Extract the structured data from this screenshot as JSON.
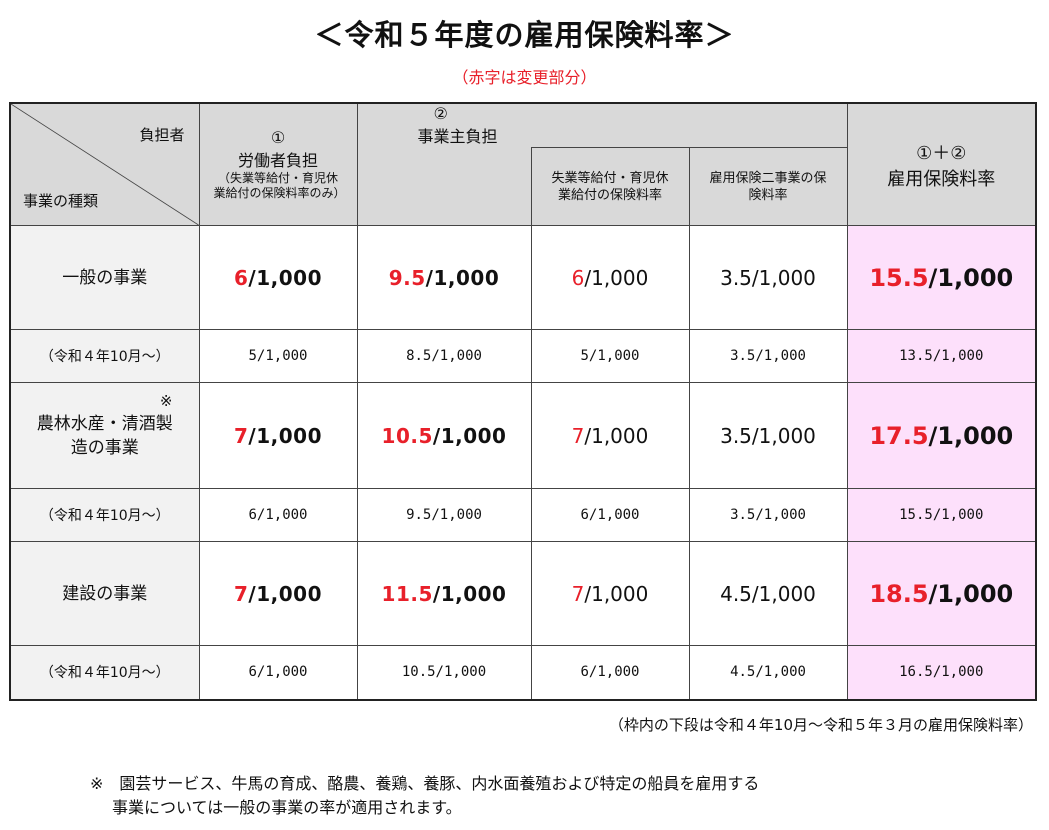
{
  "title": "＜令和５年度の雇用保険料率＞",
  "subtitle": "（赤字は変更部分）",
  "header": {
    "corner_top": "負担者",
    "corner_bottom": "事業の種類",
    "worker_num": "①",
    "worker_label": "労働者負担",
    "worker_sub": "（失業等給付・育児休業給付の保険料率のみ）",
    "employer_num": "②",
    "employer_label": "事業主負担",
    "employer_sub1": "失業等給付・育児休業給付の保険料率",
    "employer_sub2": "雇用保険二事業の保険料率",
    "total_num": "①＋②",
    "total_label": "雇用保険料率"
  },
  "rows": [
    {
      "label": "一般の事業",
      "mark": "",
      "worker": {
        "red": "6",
        "rest": "/1,000"
      },
      "employer": {
        "red": "9.5",
        "rest": "/1,000"
      },
      "unemployment": {
        "red": "6",
        "rest": "/1,000"
      },
      "two_projects": "3.5/1,000",
      "total": {
        "red": "15.5",
        "rest": "/1,000"
      },
      "prev_label": "（令和４年10月～）",
      "prev": [
        "5/1,000",
        "8.5/1,000",
        "5/1,000",
        "3.5/1,000",
        "13.5/1,000"
      ]
    },
    {
      "label": "農林水産・清酒製造の事業",
      "mark": "※",
      "worker": {
        "red": "7",
        "rest": "/1,000"
      },
      "employer": {
        "red": "10.5",
        "rest": "/1,000"
      },
      "unemployment": {
        "red": "7",
        "rest": "/1,000"
      },
      "two_projects": "3.5/1,000",
      "total": {
        "red": "17.5",
        "rest": "/1,000"
      },
      "prev_label": "（令和４年10月～）",
      "prev": [
        "6/1,000",
        "9.5/1,000",
        "6/1,000",
        "3.5/1,000",
        "15.5/1,000"
      ]
    },
    {
      "label": "建設の事業",
      "mark": "",
      "worker": {
        "red": "7",
        "rest": "/1,000"
      },
      "employer": {
        "red": "11.5",
        "rest": "/1,000"
      },
      "unemployment": {
        "red": "7",
        "rest": "/1,000"
      },
      "two_projects": "4.5/1,000",
      "total": {
        "red": "18.5",
        "rest": "/1,000"
      },
      "prev_label": "（令和４年10月～）",
      "prev": [
        "6/1,000",
        "10.5/1,000",
        "6/1,000",
        "4.5/1,000",
        "16.5/1,000"
      ]
    }
  ],
  "note_bottom": "（枠内の下段は令和４年10月～令和５年３月の雇用保険料率）",
  "footnote_line1": "※　園芸サービス、牛馬の育成、酪農、養鶏、養豚、内水面養殖および特定の船員を雇用する",
  "footnote_line2": "事業については一般の事業の率が適用されます。",
  "colors": {
    "red": "#e8202a",
    "total_bg": "#fde0fb",
    "header_bg": "#d9d9d9"
  }
}
